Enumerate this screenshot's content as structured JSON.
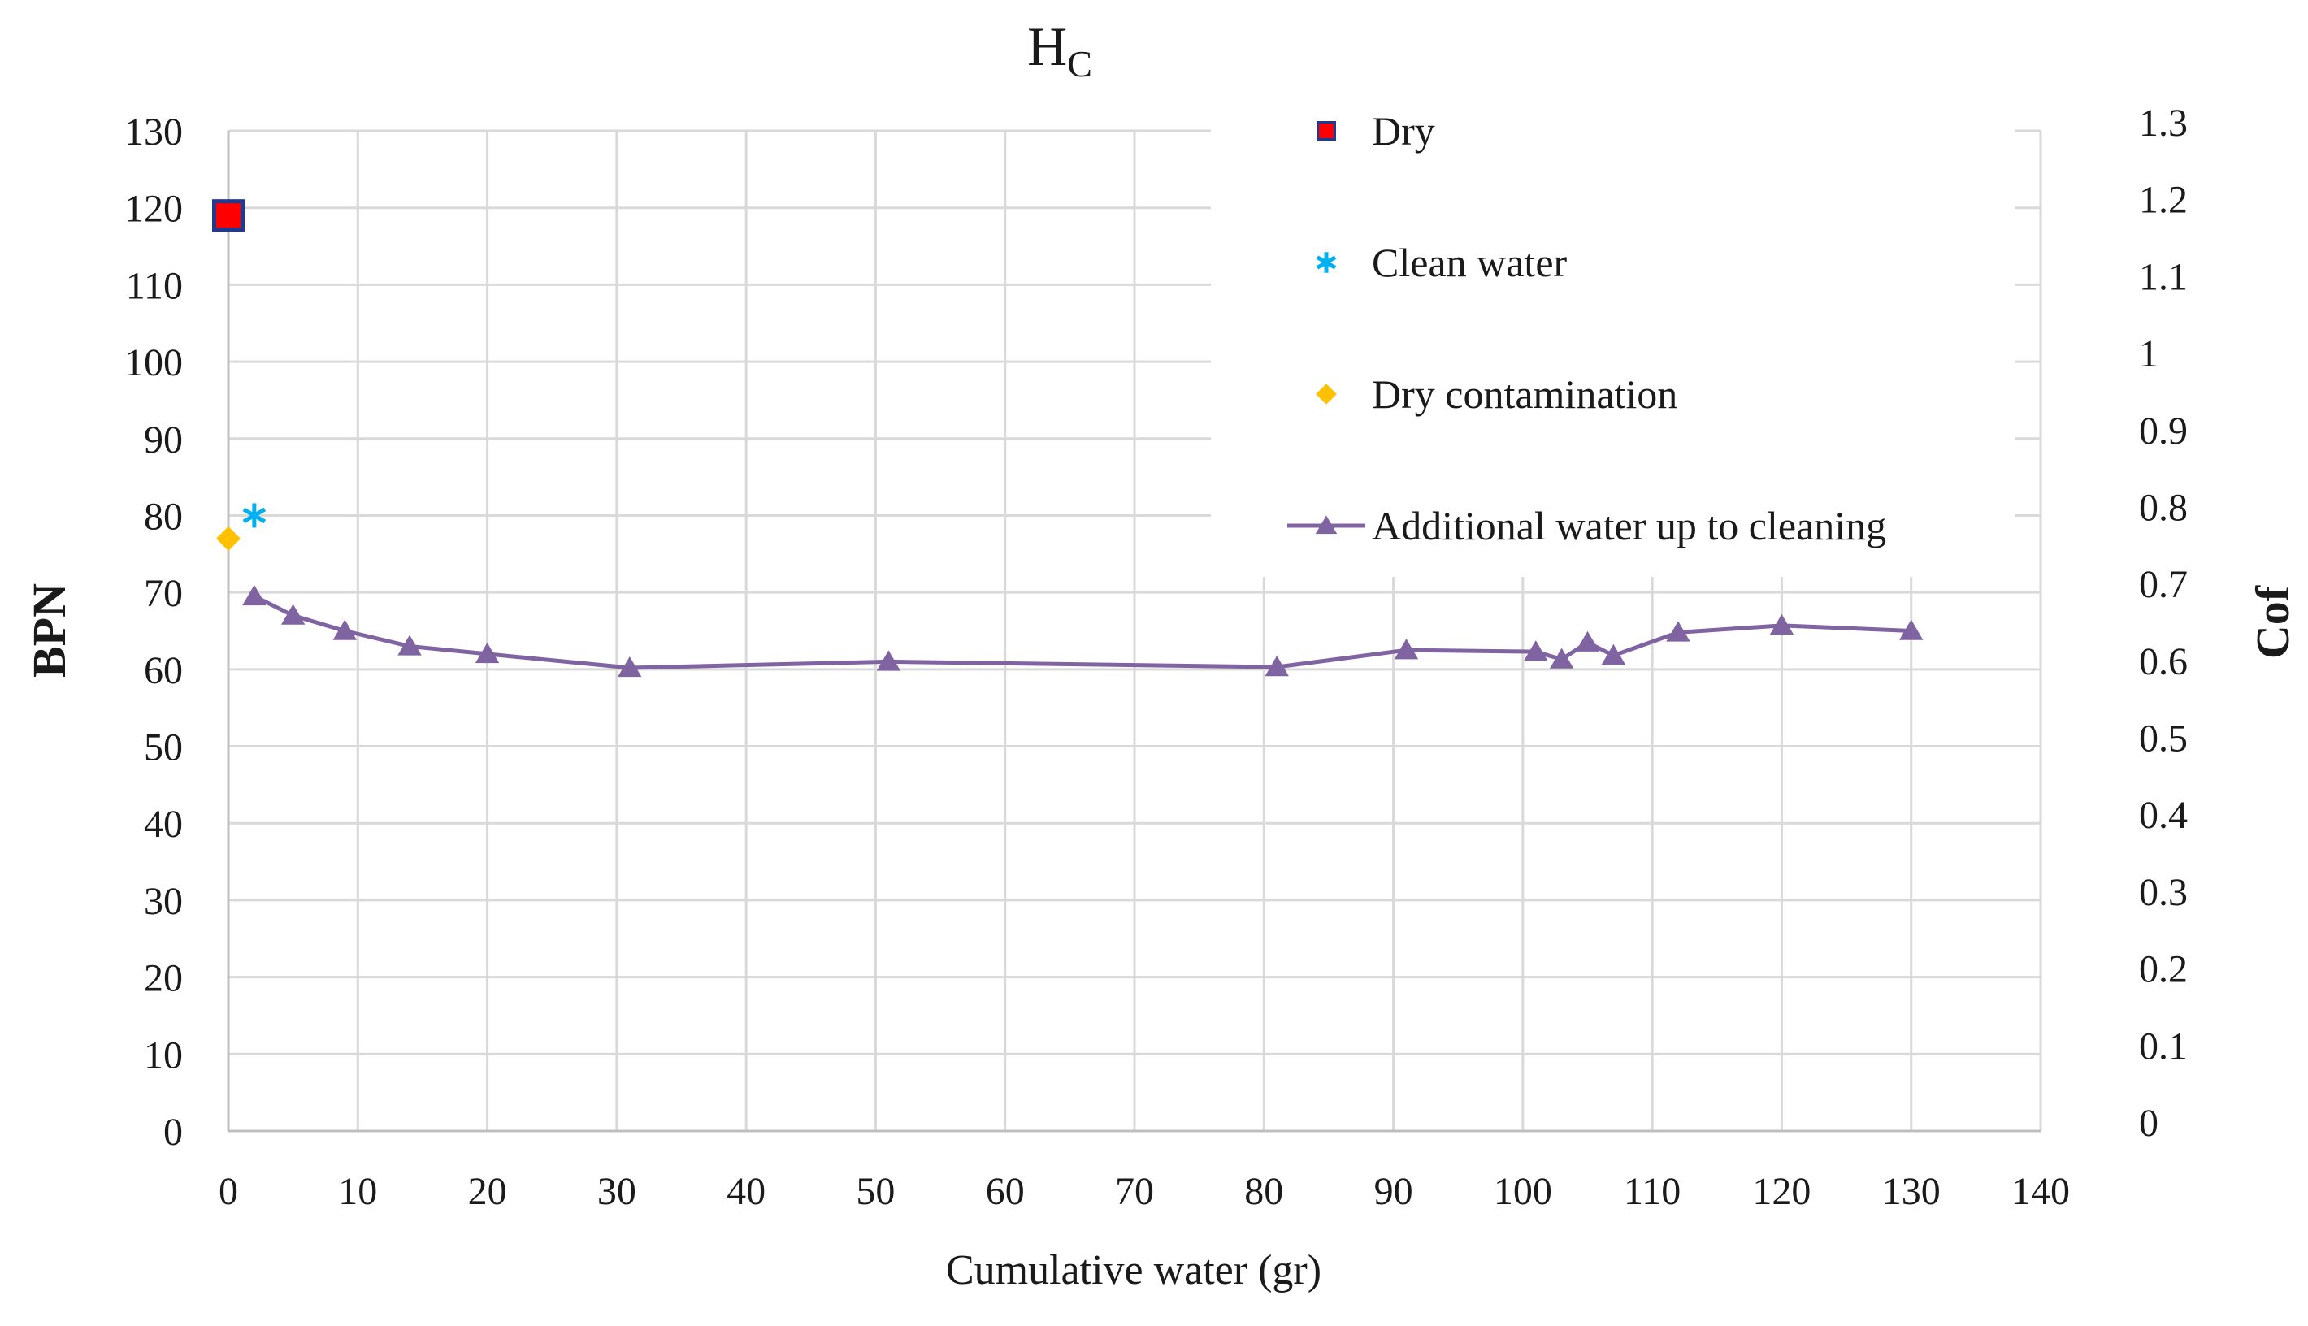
{
  "chart_data": {
    "type": "scatter",
    "title": "H",
    "title_subscript": "C",
    "xlabel": "Cumulative water (gr)",
    "ylabel": "BPN",
    "y2label": "Cof",
    "xlim": [
      0,
      140
    ],
    "ylim": [
      0,
      130
    ],
    "y2lim": [
      0,
      1.3
    ],
    "x_ticks": [
      "0",
      "10",
      "20",
      "30",
      "40",
      "50",
      "60",
      "70",
      "80",
      "90",
      "100",
      "110",
      "120",
      "130",
      "140"
    ],
    "y_ticks": [
      "0",
      "10",
      "20",
      "30",
      "40",
      "50",
      "60",
      "70",
      "80",
      "90",
      "100",
      "110",
      "120",
      "130"
    ],
    "y2_ticks": [
      "0",
      "0.1",
      "0.2",
      "0.3",
      "0.4",
      "0.5",
      "0.6",
      "0.7",
      "0.8",
      "0.9",
      "1",
      "1.1",
      "1.2",
      "1.3"
    ],
    "grid": true,
    "legend_position": "top-right",
    "series": [
      {
        "name": "Dry",
        "marker": "square",
        "color": "#ff0000",
        "edge_color": "#1f3a93",
        "points": [
          [
            0,
            119
          ]
        ]
      },
      {
        "name": "Clean water",
        "marker": "asterisk",
        "color": "#00b0f0",
        "points": [
          [
            2,
            80
          ]
        ]
      },
      {
        "name": "Dry contamination",
        "marker": "diamond",
        "color": "#ffc000",
        "points": [
          [
            0,
            77
          ]
        ]
      },
      {
        "name": "Additional water up to cleaning",
        "marker": "triangle",
        "line": true,
        "color": "#8064a2",
        "points": [
          [
            2,
            69.5
          ],
          [
            5,
            67
          ],
          [
            9,
            65
          ],
          [
            14,
            63
          ],
          [
            20,
            62
          ],
          [
            31,
            60.2
          ],
          [
            51,
            61
          ],
          [
            81,
            60.3
          ],
          [
            91,
            62.5
          ],
          [
            101,
            62.3
          ],
          [
            103,
            61.3
          ],
          [
            105,
            63.5
          ],
          [
            107,
            61.8
          ],
          [
            112,
            64.8
          ],
          [
            120,
            65.7
          ],
          [
            130,
            65
          ]
        ]
      }
    ]
  }
}
